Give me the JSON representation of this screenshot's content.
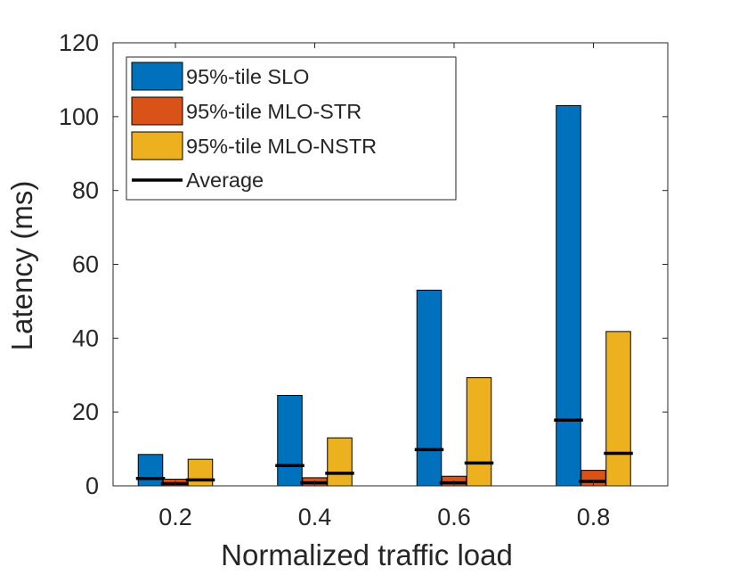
{
  "chart_data": {
    "type": "bar",
    "title": "",
    "xlabel": "Normalized traffic load",
    "ylabel": "Latency (ms)",
    "ylim": [
      0,
      120
    ],
    "yticks": [
      0,
      20,
      40,
      60,
      80,
      100,
      120
    ],
    "categories": [
      "0.2",
      "0.4",
      "0.6",
      "0.8"
    ],
    "series": [
      {
        "name": "95%-tile SLO",
        "color": "#0072BD",
        "values": [
          8.5,
          24.5,
          53,
          103
        ],
        "average": [
          2.0,
          5.5,
          9.8,
          17.8
        ]
      },
      {
        "name": "95%-tile MLO-STR",
        "color": "#D95319",
        "values": [
          1.8,
          2.2,
          2.6,
          4.2
        ],
        "average": [
          0.6,
          0.8,
          0.8,
          1.2
        ]
      },
      {
        "name": "95%-tile MLO-NSTR",
        "color": "#EDB120",
        "values": [
          7.2,
          13,
          29.3,
          41.8
        ],
        "average": [
          1.6,
          3.4,
          6.2,
          8.8
        ]
      }
    ],
    "average_label": "Average",
    "average_color": "#000000",
    "legend_position": "top-left",
    "grid": false
  }
}
